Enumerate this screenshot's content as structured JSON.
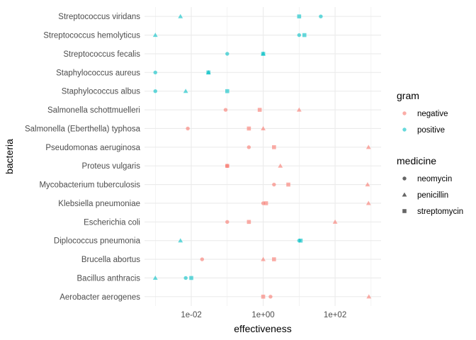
{
  "chart_data": {
    "type": "scatter",
    "xlabel": "effectiveness",
    "ylabel": "bacteria",
    "x_scale": "log10",
    "xlim": [
      0.0005,
      1900
    ],
    "x_ticks": [
      {
        "value": 0.01,
        "label": "1e-02"
      },
      {
        "value": 1,
        "label": "1e+00"
      },
      {
        "value": 100,
        "label": "1e+02"
      }
    ],
    "categories": [
      "Aerobacter aerogenes",
      "Bacillus anthracis",
      "Brucella abortus",
      "Diplococcus pneumonia",
      "Escherichia coli",
      "Klebsiella pneumoniae",
      "Mycobacterium tuberculosis",
      "Proteus vulgaris",
      "Pseudomonas aeruginosa",
      "Salmonella (Eberthella) typhosa",
      "Salmonella schottmuelleri",
      "Staphylococcus albus",
      "Staphylococcus aureus",
      "Streptococcus fecalis",
      "Streptococcus hemolyticus",
      "Streptococcus viridans"
    ],
    "grid": true,
    "legend_position": "right",
    "colors": {
      "negative": "#F8766D",
      "positive": "#00BFC4"
    },
    "shapes": {
      "neomycin": "circle",
      "penicillin": "triangle",
      "streptomycin": "square"
    },
    "legends": [
      {
        "title": "gram",
        "items": [
          {
            "label": "negative",
            "key": "negative"
          },
          {
            "label": "positive",
            "key": "positive"
          }
        ]
      },
      {
        "title": "medicine",
        "items": [
          {
            "label": "neomycin",
            "key": "neomycin"
          },
          {
            "label": "penicillin",
            "key": "penicillin"
          },
          {
            "label": "streptomycin",
            "key": "streptomycin"
          }
        ]
      }
    ],
    "points": [
      {
        "bacteria": "Aerobacter aerogenes",
        "medicine": "penicillin",
        "gram": "negative",
        "value": 870
      },
      {
        "bacteria": "Aerobacter aerogenes",
        "medicine": "streptomycin",
        "gram": "negative",
        "value": 1
      },
      {
        "bacteria": "Aerobacter aerogenes",
        "medicine": "neomycin",
        "gram": "negative",
        "value": 1.6
      },
      {
        "bacteria": "Brucella abortus",
        "medicine": "penicillin",
        "gram": "negative",
        "value": 1
      },
      {
        "bacteria": "Brucella abortus",
        "medicine": "streptomycin",
        "gram": "negative",
        "value": 2
      },
      {
        "bacteria": "Brucella abortus",
        "medicine": "neomycin",
        "gram": "negative",
        "value": 0.02
      },
      {
        "bacteria": "Bacillus anthracis",
        "medicine": "penicillin",
        "gram": "positive",
        "value": 0.001
      },
      {
        "bacteria": "Bacillus anthracis",
        "medicine": "streptomycin",
        "gram": "positive",
        "value": 0.01
      },
      {
        "bacteria": "Bacillus anthracis",
        "medicine": "neomycin",
        "gram": "positive",
        "value": 0.007
      },
      {
        "bacteria": "Diplococcus pneumonia",
        "medicine": "penicillin",
        "gram": "positive",
        "value": 0.005
      },
      {
        "bacteria": "Diplococcus pneumonia",
        "medicine": "streptomycin",
        "gram": "positive",
        "value": 11
      },
      {
        "bacteria": "Diplococcus pneumonia",
        "medicine": "neomycin",
        "gram": "positive",
        "value": 10
      },
      {
        "bacteria": "Escherichia coli",
        "medicine": "penicillin",
        "gram": "negative",
        "value": 100
      },
      {
        "bacteria": "Escherichia coli",
        "medicine": "streptomycin",
        "gram": "negative",
        "value": 0.4
      },
      {
        "bacteria": "Escherichia coli",
        "medicine": "neomycin",
        "gram": "negative",
        "value": 0.1
      },
      {
        "bacteria": "Klebsiella pneumoniae",
        "medicine": "penicillin",
        "gram": "negative",
        "value": 850
      },
      {
        "bacteria": "Klebsiella pneumoniae",
        "medicine": "streptomycin",
        "gram": "negative",
        "value": 1.2
      },
      {
        "bacteria": "Klebsiella pneumoniae",
        "medicine": "neomycin",
        "gram": "negative",
        "value": 1
      },
      {
        "bacteria": "Mycobacterium tuberculosis",
        "medicine": "penicillin",
        "gram": "negative",
        "value": 800
      },
      {
        "bacteria": "Mycobacterium tuberculosis",
        "medicine": "streptomycin",
        "gram": "negative",
        "value": 5
      },
      {
        "bacteria": "Mycobacterium tuberculosis",
        "medicine": "neomycin",
        "gram": "negative",
        "value": 2
      },
      {
        "bacteria": "Proteus vulgaris",
        "medicine": "penicillin",
        "gram": "negative",
        "value": 3
      },
      {
        "bacteria": "Proteus vulgaris",
        "medicine": "streptomycin",
        "gram": "negative",
        "value": 0.1
      },
      {
        "bacteria": "Proteus vulgaris",
        "medicine": "neomycin",
        "gram": "negative",
        "value": 0.1
      },
      {
        "bacteria": "Pseudomonas aeruginosa",
        "medicine": "penicillin",
        "gram": "negative",
        "value": 850
      },
      {
        "bacteria": "Pseudomonas aeruginosa",
        "medicine": "streptomycin",
        "gram": "negative",
        "value": 2
      },
      {
        "bacteria": "Pseudomonas aeruginosa",
        "medicine": "neomycin",
        "gram": "negative",
        "value": 0.4
      },
      {
        "bacteria": "Salmonella (Eberthella) typhosa",
        "medicine": "penicillin",
        "gram": "negative",
        "value": 1
      },
      {
        "bacteria": "Salmonella (Eberthella) typhosa",
        "medicine": "streptomycin",
        "gram": "negative",
        "value": 0.4
      },
      {
        "bacteria": "Salmonella (Eberthella) typhosa",
        "medicine": "neomycin",
        "gram": "negative",
        "value": 0.008
      },
      {
        "bacteria": "Salmonella schottmuelleri",
        "medicine": "penicillin",
        "gram": "negative",
        "value": 10
      },
      {
        "bacteria": "Salmonella schottmuelleri",
        "medicine": "streptomycin",
        "gram": "negative",
        "value": 0.8
      },
      {
        "bacteria": "Salmonella schottmuelleri",
        "medicine": "neomycin",
        "gram": "negative",
        "value": 0.09
      },
      {
        "bacteria": "Staphylococcus albus",
        "medicine": "penicillin",
        "gram": "positive",
        "value": 0.007
      },
      {
        "bacteria": "Staphylococcus albus",
        "medicine": "streptomycin",
        "gram": "positive",
        "value": 0.1
      },
      {
        "bacteria": "Staphylococcus albus",
        "medicine": "neomycin",
        "gram": "positive",
        "value": 0.001
      },
      {
        "bacteria": "Staphylococcus aureus",
        "medicine": "penicillin",
        "gram": "positive",
        "value": 0.03
      },
      {
        "bacteria": "Staphylococcus aureus",
        "medicine": "streptomycin",
        "gram": "positive",
        "value": 0.03
      },
      {
        "bacteria": "Staphylococcus aureus",
        "medicine": "neomycin",
        "gram": "positive",
        "value": 0.001
      },
      {
        "bacteria": "Streptococcus fecalis",
        "medicine": "penicillin",
        "gram": "positive",
        "value": 1
      },
      {
        "bacteria": "Streptococcus fecalis",
        "medicine": "streptomycin",
        "gram": "positive",
        "value": 1
      },
      {
        "bacteria": "Streptococcus fecalis",
        "medicine": "neomycin",
        "gram": "positive",
        "value": 0.1
      },
      {
        "bacteria": "Streptococcus hemolyticus",
        "medicine": "penicillin",
        "gram": "positive",
        "value": 0.001
      },
      {
        "bacteria": "Streptococcus hemolyticus",
        "medicine": "streptomycin",
        "gram": "positive",
        "value": 14
      },
      {
        "bacteria": "Streptococcus hemolyticus",
        "medicine": "neomycin",
        "gram": "positive",
        "value": 10
      },
      {
        "bacteria": "Streptococcus viridans",
        "medicine": "penicillin",
        "gram": "positive",
        "value": 0.005
      },
      {
        "bacteria": "Streptococcus viridans",
        "medicine": "streptomycin",
        "gram": "positive",
        "value": 10
      },
      {
        "bacteria": "Streptococcus viridans",
        "medicine": "neomycin",
        "gram": "positive",
        "value": 40
      }
    ]
  }
}
